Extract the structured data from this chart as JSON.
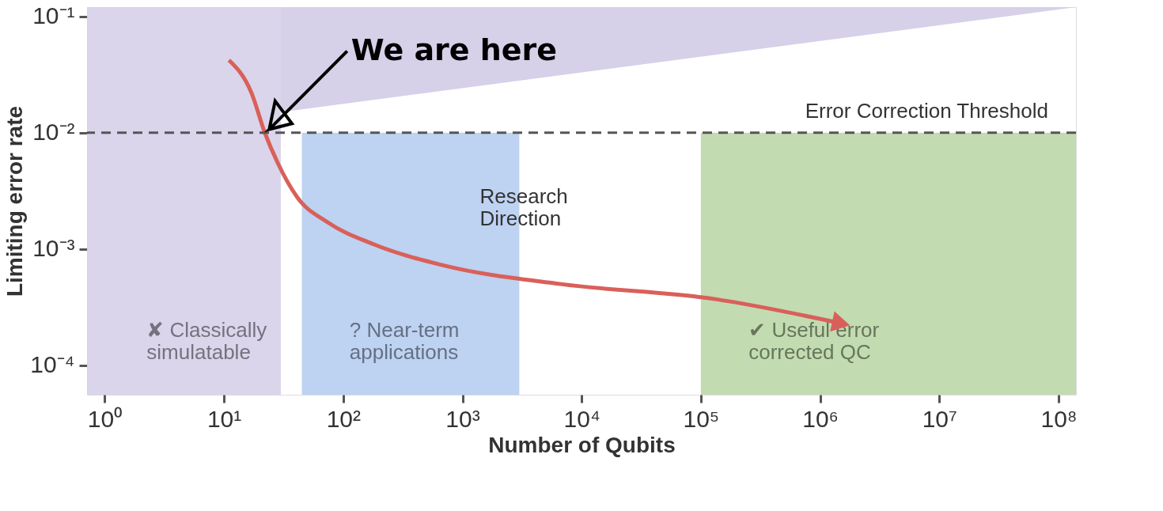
{
  "chart_data": {
    "type": "line",
    "xlabel": "Number of Qubits",
    "ylabel": "Limiting error rate",
    "log": "xy",
    "grid": false,
    "xlim": [
      0.71,
      140000000
    ],
    "ylim": [
      5.6e-05,
      0.12
    ],
    "xticks": [
      {
        "value": 1,
        "label": "10⁰"
      },
      {
        "value": 10,
        "label": "10¹"
      },
      {
        "value": 100,
        "label": "10²"
      },
      {
        "value": 1000,
        "label": "10³"
      },
      {
        "value": 10000,
        "label": "10⁴"
      },
      {
        "value": 100000,
        "label": "10⁵"
      },
      {
        "value": 1000000,
        "label": "10⁶"
      },
      {
        "value": 10000000,
        "label": "10⁷"
      },
      {
        "value": 100000000,
        "label": "10⁸"
      }
    ],
    "yticks": [
      {
        "value": 0.1,
        "label": "10⁻¹"
      },
      {
        "value": 0.01,
        "label": "10⁻²"
      },
      {
        "value": 0.001,
        "label": "10⁻³"
      },
      {
        "value": 0.0001,
        "label": "10⁻⁴"
      }
    ],
    "series": [
      {
        "type": "area",
        "color": "#d6d0e8",
        "x": [
          30,
          140000000
        ],
        "values": [
          0.015,
          0.12
        ]
      },
      {
        "color": "#d9605a",
        "x": [
          11,
          17,
          22,
          28,
          41,
          74,
          180,
          710,
          6700,
          135000,
          1500000
        ],
        "values": [
          0.042,
          0.022,
          0.01,
          0.0056,
          0.0028,
          0.0017,
          0.0011,
          0.00072,
          0.0005,
          0.00037,
          0.00023
        ]
      }
    ],
    "ref_lines": [
      {
        "axis": "y",
        "value": 0.01,
        "label": "Error Correction Threshold",
        "color": "#555555",
        "line_style": "dashed"
      }
    ],
    "bands": [
      {
        "axis": "x",
        "from": 0.71,
        "to": 30,
        "label": "✘ Classically\nsimulatable",
        "color": "#d6d0e8"
      },
      {
        "axis": "x",
        "from": 45,
        "to": 3000,
        "label": "? Near-term\napplications",
        "color": "#b7cdf0"
      },
      {
        "axis": "x",
        "from": 100000,
        "to": 140000000,
        "label": "✔ Useful error\ncorrected QC",
        "color": "#bcd7a8"
      }
    ],
    "annotations": [
      {
        "text": "We are here",
        "x": 22,
        "y": 0.01
      },
      "Research\nDirection"
    ]
  }
}
